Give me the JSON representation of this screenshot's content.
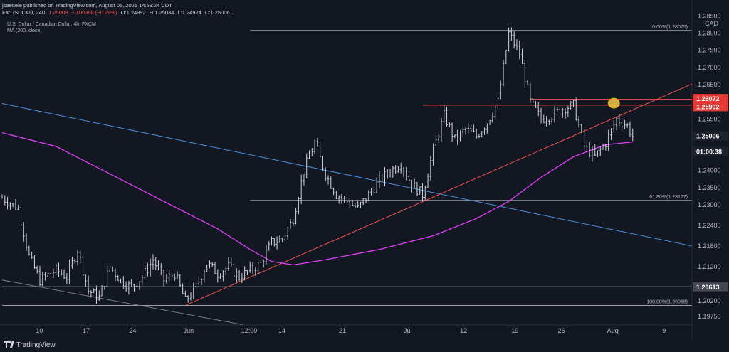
{
  "header": {
    "publisher": "jsaettele published on TradingView.com, August 05, 2021 14:59:24 CDT",
    "symbol": "FX:USDCAD, 240",
    "last": "1.25008",
    "change": "−0.00368 (−0.29%)",
    "open": "O:1.24992",
    "high": "H:1.25034",
    "low": "L:1.24924",
    "close": "C:1.25006",
    "instrument": "U.S. Dollar / Canadian Dollar, 4h, FXCM",
    "indicator": "MA (200, close)"
  },
  "footer": {
    "brand": "TradingView"
  },
  "colors": {
    "background": "#131722",
    "candle": "#d1d4dc",
    "ma200": "#e040fb",
    "channel_blue": "#4a90d9",
    "trend_red": "#ef5350",
    "fib_line": "#b2b5be",
    "label_red": "#e53935",
    "highlight": "#f7c948"
  },
  "chart_data": {
    "type": "candlestick",
    "title": "U.S. Dollar / Canadian Dollar, 4h, FXCM",
    "currency": "CAD",
    "ylim": [
      1.195,
      1.2855
    ],
    "y_ticks": [
      "1.28500",
      "1.28000",
      "1.27500",
      "1.27000",
      "1.26500",
      "1.26000",
      "1.25500",
      "1.25000",
      "1.24500",
      "1.24000",
      "1.23500",
      "1.23000",
      "1.22400",
      "1.21800",
      "1.21200",
      "1.20600",
      "1.20200",
      "1.19750"
    ],
    "x_ticks": [
      "10",
      "17",
      "24",
      "Jun",
      "12:00",
      "14",
      "21",
      "Jul",
      "12",
      "19",
      "26",
      "Aug",
      "9"
    ],
    "price_labels": [
      {
        "text": "1.26072",
        "value": 1.26072,
        "style": "red"
      },
      {
        "text": "1.25902",
        "value": 1.25902,
        "style": "red"
      },
      {
        "text": "1.25006",
        "value": 1.25006,
        "style": "dark"
      },
      {
        "text": "01:00:38",
        "value": 1.2476,
        "style": "dark"
      },
      {
        "text": "1.20613",
        "value": 1.20613,
        "style": "gray"
      }
    ],
    "fib_levels": [
      {
        "label": "0.00%(1.28075)",
        "value": 1.28075
      },
      {
        "label": "61.80%(1.23127)",
        "value": 1.23127
      },
      {
        "label": "100.00%(1.20068)",
        "value": 1.20068
      }
    ],
    "horizontal_lines": [
      {
        "value": 1.20613,
        "color": "gray"
      },
      {
        "value": 1.25902,
        "color": "red"
      },
      {
        "value": 1.26072,
        "color": "red"
      }
    ],
    "trendlines": [
      {
        "name": "",
        "color": "blue",
        "x": [
          0,
          128
        ],
        "y": [
          1.2595,
          1.218
        ]
      },
      {
        "name": "",
        "color": "red",
        "x": [
          34,
          128
        ],
        "y": [
          1.2007,
          1.2652
        ]
      },
      {
        "name": "",
        "color": "gray",
        "x": [
          0,
          45
        ],
        "y": [
          1.2081,
          1.195
        ]
      }
    ],
    "candles_close_path": [
      [
        0,
        1.232
      ],
      [
        3,
        1.229
      ],
      [
        5,
        1.215
      ],
      [
        7,
        1.208
      ],
      [
        10,
        1.211
      ],
      [
        12,
        1.209
      ],
      [
        14,
        1.217
      ],
      [
        16,
        1.205
      ],
      [
        18,
        1.203
      ],
      [
        20,
        1.212
      ],
      [
        22,
        1.208
      ],
      [
        24,
        1.206
      ],
      [
        26,
        1.209
      ],
      [
        28,
        1.214
      ],
      [
        30,
        1.208
      ],
      [
        32,
        1.21
      ],
      [
        34,
        1.202
      ],
      [
        36,
        1.206
      ],
      [
        38,
        1.213
      ],
      [
        40,
        1.21
      ],
      [
        42,
        1.212
      ],
      [
        44,
        1.209
      ],
      [
        46,
        1.211
      ],
      [
        48,
        1.213
      ],
      [
        50,
        1.219
      ],
      [
        52,
        1.22
      ],
      [
        54,
        1.226
      ],
      [
        56,
        1.24
      ],
      [
        58,
        1.248
      ],
      [
        60,
        1.239
      ],
      [
        62,
        1.233
      ],
      [
        64,
        1.231
      ],
      [
        66,
        1.229
      ],
      [
        68,
        1.233
      ],
      [
        70,
        1.237
      ],
      [
        72,
        1.24
      ],
      [
        74,
        1.242
      ],
      [
        76,
        1.236
      ],
      [
        78,
        1.233
      ],
      [
        80,
        1.246
      ],
      [
        82,
        1.256
      ],
      [
        84,
        1.249
      ],
      [
        86,
        1.252
      ],
      [
        88,
        1.25
      ],
      [
        90,
        1.254
      ],
      [
        92,
        1.26
      ],
      [
        94,
        1.28
      ],
      [
        96,
        1.274
      ],
      [
        98,
        1.26
      ],
      [
        100,
        1.255
      ],
      [
        102,
        1.256
      ],
      [
        104,
        1.258
      ],
      [
        106,
        1.259
      ],
      [
        108,
        1.247
      ],
      [
        110,
        1.244
      ],
      [
        112,
        1.248
      ],
      [
        114,
        1.255
      ],
      [
        116,
        1.253
      ],
      [
        117,
        1.25
      ]
    ],
    "ma200_path": [
      [
        0,
        1.251
      ],
      [
        10,
        1.247
      ],
      [
        20,
        1.239
      ],
      [
        30,
        1.231
      ],
      [
        40,
        1.223
      ],
      [
        46,
        1.217
      ],
      [
        50,
        1.2135
      ],
      [
        54,
        1.2125
      ],
      [
        60,
        1.214
      ],
      [
        70,
        1.217
      ],
      [
        80,
        1.221
      ],
      [
        88,
        1.226
      ],
      [
        94,
        1.231
      ],
      [
        100,
        1.238
      ],
      [
        106,
        1.244
      ],
      [
        112,
        1.2475
      ],
      [
        117,
        1.2483
      ]
    ],
    "highlight_point": {
      "x": 113.5,
      "y": 1.2596
    }
  }
}
